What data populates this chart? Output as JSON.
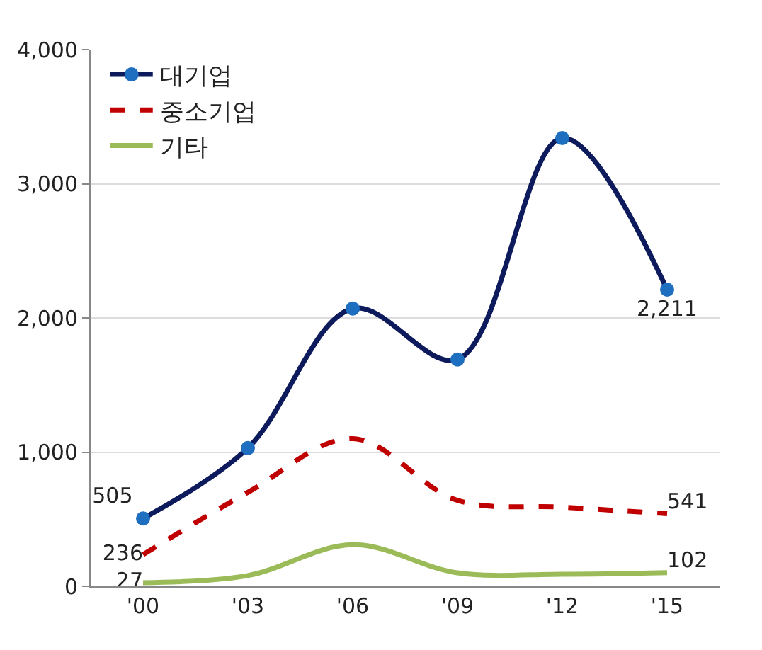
{
  "chart_data": {
    "type": "line",
    "categories": [
      "'00",
      "'03",
      "'06",
      "'09",
      "'12",
      "'15"
    ],
    "ylim": [
      0,
      4000
    ],
    "yticks": [
      {
        "value": 0,
        "label": "0"
      },
      {
        "value": 1000,
        "label": "1,000"
      },
      {
        "value": 2000,
        "label": "2,000"
      },
      {
        "value": 3000,
        "label": "3,000"
      },
      {
        "value": 4000,
        "label": "4,000"
      }
    ],
    "grid": "y",
    "legend": "top left",
    "series": [
      {
        "name": "대기업",
        "color": "#0d1a5c",
        "values": [
          505,
          1030,
          2070,
          1690,
          3340,
          2211
        ],
        "marker": "circle",
        "line_style": "solid",
        "value_labels": [
          "505",
          null,
          null,
          null,
          null,
          "2,211"
        ]
      },
      {
        "name": "중소기업",
        "color": "#c00000",
        "values": [
          236,
          700,
          1100,
          640,
          590,
          541
        ],
        "marker": "none",
        "line_style": "dashed",
        "value_labels": [
          "236",
          null,
          null,
          null,
          null,
          "541"
        ]
      },
      {
        "name": "기타",
        "color": "#9bbb59",
        "values": [
          27,
          80,
          310,
          100,
          90,
          102
        ],
        "marker": "none",
        "line_style": "solid",
        "value_labels": [
          "27",
          null,
          null,
          null,
          null,
          "102"
        ]
      }
    ]
  }
}
